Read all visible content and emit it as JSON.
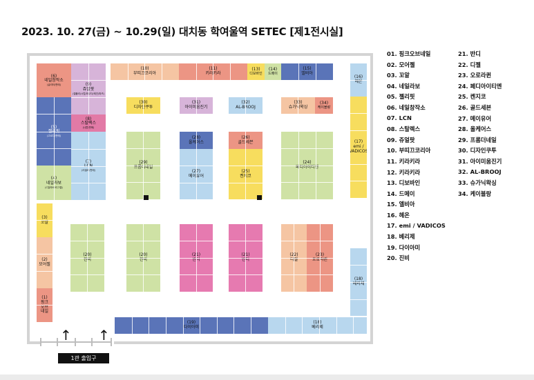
{
  "title": "2023. 10. 27(금) ~ 10.29(일) 대치동 학여울역 SETEC [제1전시실]",
  "entrance_label": "1관 출입구",
  "colors": {
    "peach": "#f5c5a3",
    "salmon": "#ec9584",
    "lavender": "#d7b4d9",
    "blue": "#5a74b8",
    "sky": "#b8d7ee",
    "pink_mid": "#e27aa6",
    "lime": "#cfe2a5",
    "yellow": "#f7dd5e",
    "hot_pink": "#e67ab0",
    "wall": "#d4d4d4"
  },
  "booths": {
    "b1": {
      "num": "(1)",
      "name": "핑크\n오브\n네일",
      "sub": ""
    },
    "b2": {
      "num": "(2)",
      "name": "모어젤",
      "sub": ""
    },
    "b3": {
      "num": "(3)",
      "name": "꼬알",
      "sub": ""
    },
    "b4": {
      "num": "(4)",
      "name": "네일라보",
      "sub": "(C일러버/리그젤)"
    },
    "b5": {
      "num": "(5)",
      "name": "젤리핏",
      "sub": "(고르디/판매)"
    },
    "b6": {
      "num": "(6)",
      "name": "네일창작소",
      "sub": "(글리터/판매)"
    },
    "b7": {
      "num": "(7)",
      "name": "LCN",
      "sub": "(리셀러/판매)"
    },
    "b8": {
      "num": "(8)",
      "name": "스탈렉스",
      "sub": "(나쁜/판매)"
    },
    "b9": {
      "num": "(9)",
      "name": "쥬얼팟",
      "sub": "(젤폴리/시럽/파우더/레진/파츠)"
    },
    "b10": {
      "num": "(10)",
      "name": "부띠끄코리아",
      "sub": ""
    },
    "b11": {
      "num": "(11)",
      "name": "키라키라",
      "sub": ""
    },
    "b13": {
      "num": "(13)",
      "name": "디보바인",
      "sub": ""
    },
    "b14": {
      "num": "(14)",
      "name": "드메이",
      "sub": ""
    },
    "b15": {
      "num": "(15)",
      "name": "엘비아",
      "sub": ""
    },
    "b16": {
      "num": "(16)",
      "name": "헤온",
      "sub": ""
    },
    "b17": {
      "num": "(17)",
      "name": "emi /\nVADICOS",
      "sub": ""
    },
    "b18a": {
      "num": "(18)",
      "name": "베리제",
      "sub": ""
    },
    "b18b": {
      "num": "(18)",
      "name": "베리제",
      "sub": ""
    },
    "b19": {
      "num": "(19)",
      "name": "다이아미",
      "sub": ""
    },
    "b20a": {
      "num": "(20)",
      "name": "진비",
      "sub": ""
    },
    "b20b": {
      "num": "(20)",
      "name": "진비",
      "sub": ""
    },
    "b21a": {
      "num": "(21)",
      "name": "반디",
      "sub": ""
    },
    "b21b": {
      "num": "(21)",
      "name": "반디",
      "sub": ""
    },
    "b22": {
      "num": "(22)",
      "name": "디젤",
      "sub": ""
    },
    "b23": {
      "num": "(23)",
      "name": "오로라퀸",
      "sub": ""
    },
    "b24": {
      "num": "(24)",
      "name": "페디아이티엔",
      "sub": ""
    },
    "b25": {
      "num": "(25)",
      "name": "켄지코",
      "sub": ""
    },
    "b26": {
      "num": "(26)",
      "name": "골드세븐",
      "sub": ""
    },
    "b27": {
      "num": "(27)",
      "name": "메이유어",
      "sub": ""
    },
    "b28": {
      "num": "(28)",
      "name": "올케어스",
      "sub": ""
    },
    "b29": {
      "num": "(29)",
      "name": "프롬더네일",
      "sub": ""
    },
    "b30": {
      "num": "(30)",
      "name": "디자인쿠투",
      "sub": ""
    },
    "b31": {
      "num": "(31)",
      "name": "아이미움진기",
      "sub": ""
    },
    "b32": {
      "num": "(32)",
      "name": "AL-BROOJ",
      "sub": ""
    },
    "b33": {
      "num": "(33)",
      "name": "슈가닉왁싱",
      "sub": ""
    },
    "b34": {
      "num": "(34)",
      "name": "케이블랑",
      "sub": ""
    }
  },
  "legend_col1": [
    "01. 핑크오브네일",
    "02. 모어젤",
    "03. 꼬알",
    "04. 네일라보",
    "05. 젤리핏",
    "06. 네일창작소",
    "07. LCN",
    "08. 스탈렉스",
    "09. 쥬얼팟",
    "10. 부띠끄코리아",
    "11. 키라키라",
    "12. 키라키라",
    "13. 디보바인",
    "14. 드메이",
    "15. 엘비아",
    "16. 헤온",
    "17. emi / VADICOS",
    "18. 베리제",
    "19. 다이아미",
    "20. 진비"
  ],
  "legend_col2": [
    "21. 반디",
    "22. 디젤",
    "23. 오로라퀸",
    "24. 페디아이티엔",
    "25. 켄지코",
    "26. 골드세븐",
    "27. 메이유어",
    "28. 올케어스",
    "29. 프롬더네일",
    "30. 디자인쿠투",
    "31. 아이미움진기",
    "32. AL-BROOJ",
    "33. 슈가닉왁싱",
    "34. 케이블랑"
  ]
}
